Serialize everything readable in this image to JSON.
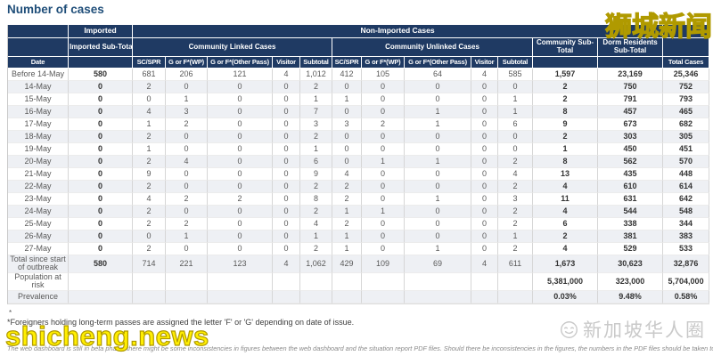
{
  "title": "Number of cases",
  "table": {
    "header": {
      "imported_group": "Imported",
      "non_imported_group": "Non-Imported Cases",
      "imported_subtotal": "Imported Sub-Total",
      "community_linked_group": "Community Linked Cases",
      "community_unlinked_group": "Community Unlinked Cases",
      "community_subtotal": "Community Sub-Total",
      "dorm_residents_subtotal": "Dorm Residents Sub-Total",
      "date": "Date",
      "total_cases": "Total Cases",
      "sub_columns": [
        "SC/SPR",
        "G or F*(WP)",
        "G or F*(Other Pass)",
        "Visitor",
        "Subtotal"
      ]
    },
    "rows": [
      {
        "label": "Before 14-May",
        "values": [
          "580",
          "681",
          "206",
          "121",
          "4",
          "1,012",
          "412",
          "105",
          "64",
          "4",
          "585",
          "1,597",
          "23,169",
          "25,346"
        ]
      },
      {
        "label": "14-May",
        "values": [
          "0",
          "2",
          "0",
          "0",
          "0",
          "2",
          "0",
          "0",
          "0",
          "0",
          "0",
          "2",
          "750",
          "752"
        ]
      },
      {
        "label": "15-May",
        "values": [
          "0",
          "0",
          "1",
          "0",
          "0",
          "1",
          "1",
          "0",
          "0",
          "0",
          "1",
          "2",
          "791",
          "793"
        ]
      },
      {
        "label": "16-May",
        "values": [
          "0",
          "4",
          "3",
          "0",
          "0",
          "7",
          "0",
          "0",
          "1",
          "0",
          "1",
          "8",
          "457",
          "465"
        ]
      },
      {
        "label": "17-May",
        "values": [
          "0",
          "1",
          "2",
          "0",
          "0",
          "3",
          "3",
          "2",
          "1",
          "0",
          "6",
          "9",
          "673",
          "682"
        ]
      },
      {
        "label": "18-May",
        "values": [
          "0",
          "2",
          "0",
          "0",
          "0",
          "2",
          "0",
          "0",
          "0",
          "0",
          "0",
          "2",
          "303",
          "305"
        ]
      },
      {
        "label": "19-May",
        "values": [
          "0",
          "1",
          "0",
          "0",
          "0",
          "1",
          "0",
          "0",
          "0",
          "0",
          "0",
          "1",
          "450",
          "451"
        ]
      },
      {
        "label": "20-May",
        "values": [
          "0",
          "2",
          "4",
          "0",
          "0",
          "6",
          "0",
          "1",
          "1",
          "0",
          "2",
          "8",
          "562",
          "570"
        ]
      },
      {
        "label": "21-May",
        "values": [
          "0",
          "9",
          "0",
          "0",
          "0",
          "9",
          "4",
          "0",
          "0",
          "0",
          "4",
          "13",
          "435",
          "448"
        ]
      },
      {
        "label": "22-May",
        "values": [
          "0",
          "2",
          "0",
          "0",
          "0",
          "2",
          "2",
          "0",
          "0",
          "0",
          "2",
          "4",
          "610",
          "614"
        ]
      },
      {
        "label": "23-May",
        "values": [
          "0",
          "4",
          "2",
          "2",
          "0",
          "8",
          "2",
          "0",
          "1",
          "0",
          "3",
          "11",
          "631",
          "642"
        ]
      },
      {
        "label": "24-May",
        "values": [
          "0",
          "2",
          "0",
          "0",
          "0",
          "2",
          "1",
          "1",
          "0",
          "0",
          "2",
          "4",
          "544",
          "548"
        ]
      },
      {
        "label": "25-May",
        "values": [
          "0",
          "2",
          "2",
          "0",
          "0",
          "4",
          "2",
          "0",
          "0",
          "0",
          "2",
          "6",
          "338",
          "344"
        ]
      },
      {
        "label": "26-May",
        "values": [
          "0",
          "0",
          "1",
          "0",
          "0",
          "1",
          "1",
          "0",
          "0",
          "0",
          "1",
          "2",
          "381",
          "383"
        ]
      },
      {
        "label": "27-May",
        "values": [
          "0",
          "2",
          "0",
          "0",
          "0",
          "2",
          "1",
          "0",
          "1",
          "0",
          "2",
          "4",
          "529",
          "533"
        ]
      },
      {
        "label": "Total since start of outbreak",
        "values": [
          "580",
          "714",
          "221",
          "123",
          "4",
          "1,062",
          "429",
          "109",
          "69",
          "4",
          "611",
          "1,673",
          "30,623",
          "32,876"
        ]
      },
      {
        "label": "Population at risk",
        "values": [
          "",
          "",
          "",
          "",
          "",
          "",
          "",
          "",
          "",
          "",
          "",
          "5,381,000",
          "323,000",
          "5,704,000"
        ]
      },
      {
        "label": "Prevalence",
        "values": [
          "",
          "",
          "",
          "",
          "",
          "",
          "",
          "",
          "",
          "",
          "",
          "0.03%",
          "9.48%",
          "0.58%"
        ]
      }
    ]
  },
  "footnotes": {
    "marker": "*",
    "passes_note": "*Foreigners holding long-term passes are assigned the letter 'F' or 'G' depending on date of issue.",
    "beta_note": "The web dashboard is still in beta phase; there might be some inconsistencies in figures between the web dashboard and the situation report PDF files. Should there be inconsistencies in the figures, the numbers in the PDF files should be taken to be correct."
  },
  "watermarks": {
    "top_right": "狮城新闻",
    "bottom_left": "shicheng.news",
    "bottom_right": "新加坡华人圈"
  },
  "colors": {
    "header_bg": "#1f3a63",
    "title_text": "#1f4e79",
    "stripe": "#eef0f4",
    "watermark_yellow": "#ffee00",
    "watermark_gray": "#c9c9c9"
  }
}
